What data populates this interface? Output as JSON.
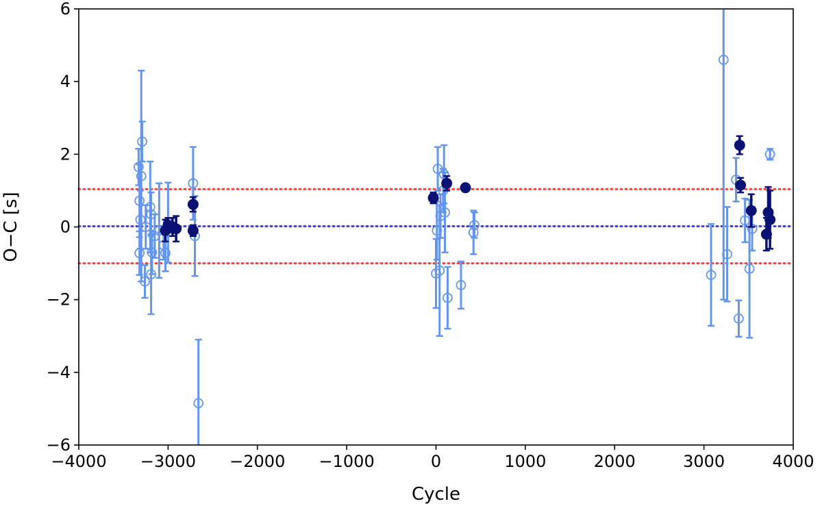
{
  "chart_data": {
    "type": "scatter",
    "title": "",
    "xlabel": "Cycle",
    "ylabel": "O−C [s]",
    "xlim": [
      -4000,
      4000
    ],
    "ylim": [
      -6,
      6
    ],
    "xticks": [
      -4000,
      -3000,
      -2000,
      -1000,
      0,
      1000,
      2000,
      3000,
      4000
    ],
    "xtick_labels": [
      "−4000",
      "−3000",
      "−2000",
      "−1000",
      "0",
      "1000",
      "2000",
      "3000",
      "4000"
    ],
    "yticks": [
      -6,
      -4,
      -2,
      0,
      2,
      4,
      6
    ],
    "ytick_labels": [
      "−6",
      "−4",
      "−2",
      "0",
      "2",
      "4",
      "6"
    ],
    "grid": false,
    "legend": "none",
    "reference_lines": [
      {
        "y": 0.02,
        "color": "#3b3bff",
        "style": "dotted"
      },
      {
        "y": 1.04,
        "color": "#ff3b3b",
        "style": "dotted"
      },
      {
        "y": -1.0,
        "color": "#ff3b3b",
        "style": "dotted"
      }
    ],
    "series": [
      {
        "marker": "open-circle",
        "color": "#6495ed",
        "points": [
          {
            "x": -3330,
            "y": 1.65,
            "err": 0.5
          },
          {
            "x": -3320,
            "y": 0.72,
            "err": 1.0
          },
          {
            "x": -3310,
            "y": 0.2,
            "err": 0.8
          },
          {
            "x": -3320,
            "y": -0.72,
            "err": 0.6
          },
          {
            "x": -3300,
            "y": 1.4,
            "err": 2.9
          },
          {
            "x": -3290,
            "y": 2.35,
            "err": 0.55
          },
          {
            "x": -3260,
            "y": -1.5,
            "err": 0.45
          },
          {
            "x": -3250,
            "y": 0.0,
            "err": 0.6
          },
          {
            "x": -3200,
            "y": 0.55,
            "err": 1.25
          },
          {
            "x": -3190,
            "y": 0.35,
            "err": 0.6
          },
          {
            "x": -3180,
            "y": -0.7,
            "err": 0.6
          },
          {
            "x": -3190,
            "y": -1.3,
            "err": 1.1
          },
          {
            "x": -3150,
            "y": -0.25,
            "err": 0.6
          },
          {
            "x": -3100,
            "y": -0.1,
            "err": 1.3
          },
          {
            "x": -3050,
            "y": -0.5,
            "err": 0.4
          },
          {
            "x": -3030,
            "y": -0.72,
            "err": 0.5
          },
          {
            "x": -3000,
            "y": 0.12,
            "err": 1.1
          },
          {
            "x": -2720,
            "y": 1.2,
            "err": 1.0
          },
          {
            "x": -2700,
            "y": -0.25,
            "err": 1.1
          },
          {
            "x": -2660,
            "y": -4.85,
            "err": 1.75
          },
          {
            "x": 0,
            "y": -1.28,
            "err": 0.95
          },
          {
            "x": 10,
            "y": -0.1,
            "err": 0.8
          },
          {
            "x": 20,
            "y": 1.6,
            "err": 0.6
          },
          {
            "x": 40,
            "y": -1.2,
            "err": 1.8
          },
          {
            "x": 50,
            "y": 0.3,
            "err": 0.6
          },
          {
            "x": 80,
            "y": 1.0,
            "err": 0.6
          },
          {
            "x": 90,
            "y": 1.45,
            "err": 0.8
          },
          {
            "x": 100,
            "y": 0.4,
            "err": 1.1
          },
          {
            "x": 130,
            "y": -1.95,
            "err": 0.85
          },
          {
            "x": 280,
            "y": -1.6,
            "err": 0.65
          },
          {
            "x": 420,
            "y": -0.15,
            "err": 0.6
          },
          {
            "x": 430,
            "y": 0.05,
            "err": 0.35
          },
          {
            "x": 3080,
            "y": -1.32,
            "err": 1.4
          },
          {
            "x": 3220,
            "y": 4.6,
            "err": 6.6
          },
          {
            "x": 3260,
            "y": -0.75,
            "err": 1.3
          },
          {
            "x": 3360,
            "y": 1.3,
            "err": 0.6
          },
          {
            "x": 3390,
            "y": -2.52,
            "err": 0.5
          },
          {
            "x": 3460,
            "y": 0.18,
            "err": 0.6
          },
          {
            "x": 3510,
            "y": -1.15,
            "err": 1.9
          },
          {
            "x": 3540,
            "y": -0.05,
            "err": 0.6
          },
          {
            "x": 3740,
            "y": 2.0,
            "err": 0.15
          }
        ]
      },
      {
        "marker": "filled-circle",
        "color": "#0a1172",
        "points": [
          {
            "x": -3030,
            "y": -0.1,
            "err": 0.3
          },
          {
            "x": -3000,
            "y": 0.05,
            "err": 0.2
          },
          {
            "x": -2950,
            "y": 0.0,
            "err": 0.25
          },
          {
            "x": -2910,
            "y": -0.05,
            "err": 0.35
          },
          {
            "x": -2720,
            "y": 0.62,
            "err": 0.2
          },
          {
            "x": -2720,
            "y": -0.1,
            "err": 0.15
          },
          {
            "x": -30,
            "y": 0.8,
            "err": 0.15
          },
          {
            "x": 120,
            "y": 1.2,
            "err": 0.2
          },
          {
            "x": 330,
            "y": 1.08,
            "err": 0.08
          },
          {
            "x": 3400,
            "y": 2.25,
            "err": 0.25
          },
          {
            "x": 3410,
            "y": 1.15,
            "err": 0.2
          },
          {
            "x": 3530,
            "y": 0.45,
            "err": 0.45
          },
          {
            "x": 3700,
            "y": -0.2,
            "err": 0.45
          },
          {
            "x": 3720,
            "y": 0.4,
            "err": 0.7
          },
          {
            "x": 3740,
            "y": 0.2,
            "err": 0.8
          }
        ]
      }
    ]
  }
}
